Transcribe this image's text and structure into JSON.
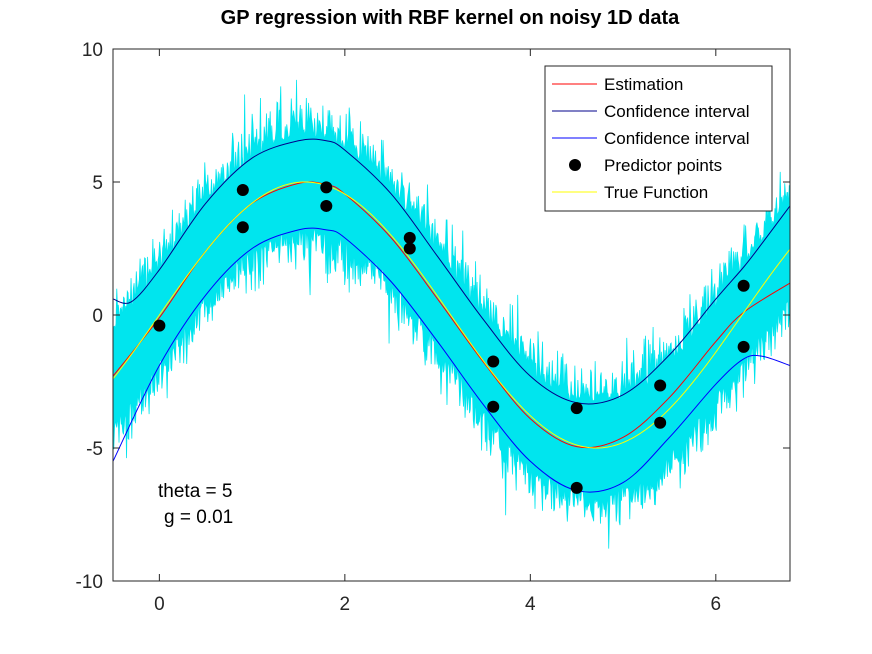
{
  "chart_data": {
    "type": "line",
    "title": "GP regression with RBF kernel on noisy 1D data",
    "xlabel": "",
    "ylabel": "",
    "xlim": [
      -0.5,
      6.8
    ],
    "ylim": [
      -10,
      10
    ],
    "xticks": [
      0,
      2,
      4,
      6
    ],
    "yticks": [
      -10,
      -5,
      0,
      5,
      10
    ],
    "xtick_labels": [
      "0",
      "2",
      "4",
      "6"
    ],
    "ytick_labels": [
      "-10",
      "-5",
      "0",
      "5",
      "10"
    ],
    "grid": false,
    "legend_position": "top-right",
    "annotations": [
      "theta = 5",
      "g = 0.01"
    ],
    "noise_band": {
      "color": "#00e5ee",
      "amplitude": 5,
      "noise_sd": 0.6
    },
    "estimation": {
      "x": [
        -0.5,
        0,
        0.5,
        1.0,
        1.5,
        1.8,
        2.0,
        2.5,
        3.0,
        3.5,
        4.0,
        4.5,
        5.0,
        5.5,
        6.0,
        6.3,
        6.8
      ],
      "y": [
        -2.3,
        -0.1,
        2.4,
        4.2,
        4.95,
        4.9,
        4.55,
        2.9,
        0.6,
        -1.8,
        -3.9,
        -4.95,
        -4.6,
        -3.1,
        -1.0,
        0.1,
        1.2
      ]
    },
    "upper_ci": {
      "x": [
        -0.5,
        -0.3,
        0,
        0.5,
        1.0,
        1.5,
        1.8,
        2.0,
        2.5,
        3.0,
        3.5,
        4.0,
        4.5,
        5.0,
        5.5,
        6.0,
        6.3,
        6.5,
        6.8
      ],
      "y": [
        0.6,
        0.5,
        1.7,
        4.2,
        5.9,
        6.55,
        6.55,
        6.2,
        4.55,
        2.2,
        -0.2,
        -2.3,
        -3.3,
        -3.0,
        -1.5,
        0.6,
        1.8,
        2.7,
        4.1
      ]
    },
    "lower_ci": {
      "x": [
        -0.5,
        0,
        0.5,
        1.0,
        1.5,
        1.8,
        2.0,
        2.5,
        3.0,
        3.5,
        4.0,
        4.5,
        5.0,
        5.5,
        6.0,
        6.3,
        6.5,
        6.8
      ],
      "y": [
        -5.5,
        -1.9,
        0.75,
        2.5,
        3.2,
        3.2,
        2.9,
        1.25,
        -1.0,
        -3.4,
        -5.5,
        -6.6,
        -6.3,
        -4.6,
        -2.6,
        -1.65,
        -1.55,
        -1.9
      ]
    },
    "true_function": {
      "expression": "5*sin(x)",
      "xlim": [
        -0.5,
        6.8
      ]
    },
    "predictor_points": {
      "x": [
        0,
        0.9,
        0.9,
        1.8,
        1.8,
        2.7,
        2.7,
        3.6,
        3.6,
        4.5,
        4.5,
        5.4,
        5.4,
        6.3,
        6.3
      ],
      "y": [
        -0.4,
        4.7,
        3.3,
        4.8,
        4.1,
        2.9,
        2.5,
        -1.75,
        -3.45,
        -3.5,
        -6.5,
        -2.65,
        -4.05,
        1.1,
        -1.2
      ]
    },
    "legend": [
      {
        "label": "Estimation",
        "color": "#ff0000",
        "style": "line"
      },
      {
        "label": "Confidence interval",
        "color": "#00008b",
        "style": "line"
      },
      {
        "label": "Confidence interval",
        "color": "#0000ff",
        "style": "line"
      },
      {
        "label": "Predictor points",
        "color": "#000000",
        "style": "marker"
      },
      {
        "label": "True Function",
        "color": "#ffff00",
        "style": "line"
      }
    ]
  }
}
